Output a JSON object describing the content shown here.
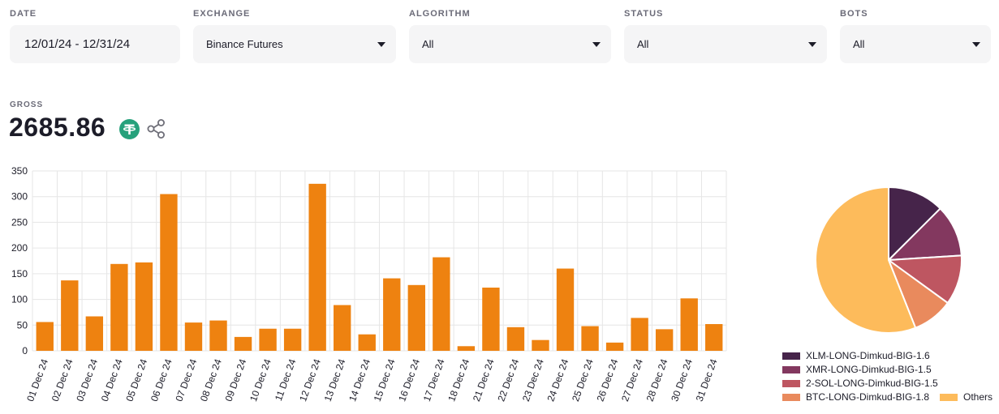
{
  "filters": [
    {
      "label": "DATE",
      "value": "12/01/24 - 12/31/24",
      "dropdown": false
    },
    {
      "label": "EXCHANGE",
      "value": "Binance Futures",
      "dropdown": true
    },
    {
      "label": "ALGORITHM",
      "value": "All",
      "dropdown": true
    },
    {
      "label": "STATUS",
      "value": "All",
      "dropdown": true
    },
    {
      "label": "BOTS",
      "value": "All",
      "dropdown": true
    }
  ],
  "gross": {
    "label": "GROSS",
    "value": "2685.86",
    "currency_icon": "tether-icon",
    "share_icon": "share-icon"
  },
  "colors": {
    "bar": "#ee8210",
    "grid": "#e6e6e6",
    "tether": "#26a17b"
  },
  "chart_data": [
    {
      "type": "bar",
      "categories": [
        "01 Dec 24",
        "02 Dec 24",
        "03 Dec 24",
        "04 Dec 24",
        "05 Dec 24",
        "06 Dec 24",
        "07 Dec 24",
        "08 Dec 24",
        "09 Dec 24",
        "10 Dec 24",
        "11 Dec 24",
        "12 Dec 24",
        "13 Dec 24",
        "14 Dec 24",
        "15 Dec 24",
        "16 Dec 24",
        "17 Dec 24",
        "18 Dec 24",
        "21 Dec 24",
        "22 Dec 24",
        "23 Dec 24",
        "24 Dec 24",
        "25 Dec 24",
        "26 Dec 24",
        "27 Dec 24",
        "28 Dec 24",
        "30 Dec 24",
        "31 Dec 24"
      ],
      "values": [
        56,
        137,
        67,
        169,
        172,
        305,
        55,
        59,
        27,
        43,
        43,
        325,
        89,
        32,
        141,
        128,
        182,
        9,
        123,
        46,
        21,
        160,
        48,
        16,
        64,
        42,
        102,
        52
      ],
      "yticks": [
        "0",
        "50",
        "100",
        "150",
        "200",
        "250",
        "300",
        "350"
      ],
      "ylim": [
        0,
        350
      ],
      "grid": true
    },
    {
      "type": "pie",
      "slices": [
        {
          "name": "XLM-LONG-Dimkud-BIG-1.6",
          "value": 12.5,
          "color": "#46244a"
        },
        {
          "name": "XMR-LONG-Dimkud-BIG-1.5",
          "value": 11.5,
          "color": "#83385f"
        },
        {
          "name": "2-SOL-LONG-Dimkud-BIG-1.5",
          "value": 11.0,
          "color": "#be5661"
        },
        {
          "name": "BTC-LONG-Dimkud-BIG-1.8",
          "value": 9.0,
          "color": "#e98a5d"
        },
        {
          "name": "Others",
          "value": 56.0,
          "color": "#fdbb5b"
        }
      ],
      "legend": "bottom"
    }
  ]
}
